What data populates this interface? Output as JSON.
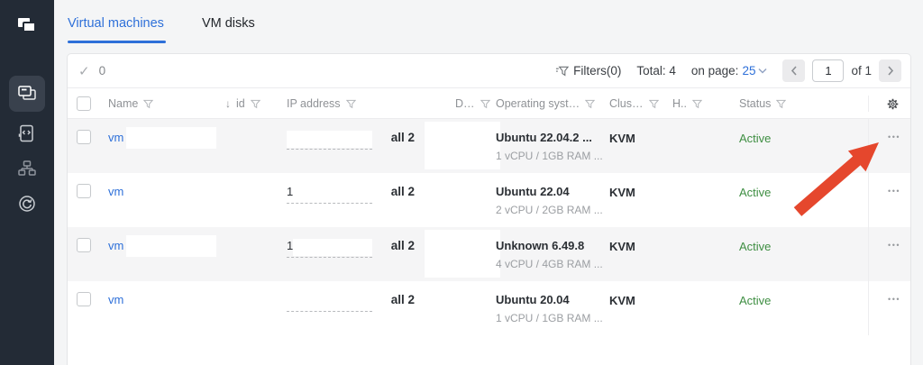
{
  "sidebar": {
    "logo_icon": "overlapping-windows-logo",
    "items": [
      {
        "icon": "vm-list-icon",
        "active": true
      },
      {
        "icon": "scripts-icon",
        "active": false
      },
      {
        "icon": "cluster-icon",
        "active": false
      },
      {
        "icon": "history-icon",
        "active": false
      }
    ]
  },
  "tabs": [
    {
      "label": "Virtual machines",
      "active": true
    },
    {
      "label": "VM disks",
      "active": false
    }
  ],
  "toolbar": {
    "selected_count": "0",
    "filters_label": "Filters(0)",
    "total_label": "Total: 4",
    "on_page_label": "on page:",
    "per_page_value": "25",
    "page_input_value": "1",
    "page_of_label": "of 1"
  },
  "table": {
    "columns": [
      {
        "label": "Name",
        "filter": true
      },
      {
        "label": "id",
        "filter": true,
        "sorted": "desc"
      },
      {
        "label": "IP address",
        "filter": true
      },
      {
        "label": "D…",
        "filter": true
      },
      {
        "label": "Operating syst…",
        "filter": true
      },
      {
        "label": "Clus…",
        "filter": true
      },
      {
        "label": "H..",
        "filter": true
      },
      {
        "label": "Status",
        "filter": true
      }
    ],
    "rows": [
      {
        "name": "vm",
        "name_redacted": true,
        "ip": "",
        "ip_redacted": true,
        "ip_links": "all 2",
        "details_redacted": true,
        "os": "Ubuntu 22.04.2 ...",
        "os_details": "1 vCPU / 1GB RAM ...",
        "cluster": "KVM",
        "status": "Active",
        "status_color": "#3e8e42",
        "shaded": true
      },
      {
        "name": "vm",
        "name_redacted": true,
        "ip": "1",
        "ip_redacted": true,
        "ip_links": "all 2",
        "details_redacted": true,
        "os": "Ubuntu 22.04",
        "os_details": "2 vCPU / 2GB RAM ...",
        "cluster": "KVM",
        "status": "Active",
        "status_color": "#3e8e42",
        "shaded": false
      },
      {
        "name": "vm",
        "name_redacted": true,
        "ip": "1",
        "ip_redacted": true,
        "ip_links": "all 2",
        "details_redacted": true,
        "os": "Unknown 6.49.8",
        "os_details": "4 vCPU / 4GB RAM ...",
        "cluster": "KVM",
        "status": "Active",
        "status_color": "#3e8e42",
        "shaded": true
      },
      {
        "name": "vm",
        "name_redacted": true,
        "ip": "",
        "ip_redacted": true,
        "ip_links": "all 2",
        "details_redacted": true,
        "os": "Ubuntu 20.04",
        "os_details": "1 vCPU / 1GB RAM ...",
        "cluster": "KVM",
        "status": "Active",
        "status_color": "#3e8e42",
        "shaded": false
      }
    ]
  },
  "icons": {
    "ellipsis": "•••",
    "sort_desc": "↓",
    "check": "✓"
  },
  "colors": {
    "accent_blue": "#2e70d9",
    "status_green": "#3e8e42",
    "arrow_red": "#e5472d"
  },
  "annotation_arrow": {
    "points_to": "row-1-actions-button",
    "color": "#e5472d"
  }
}
